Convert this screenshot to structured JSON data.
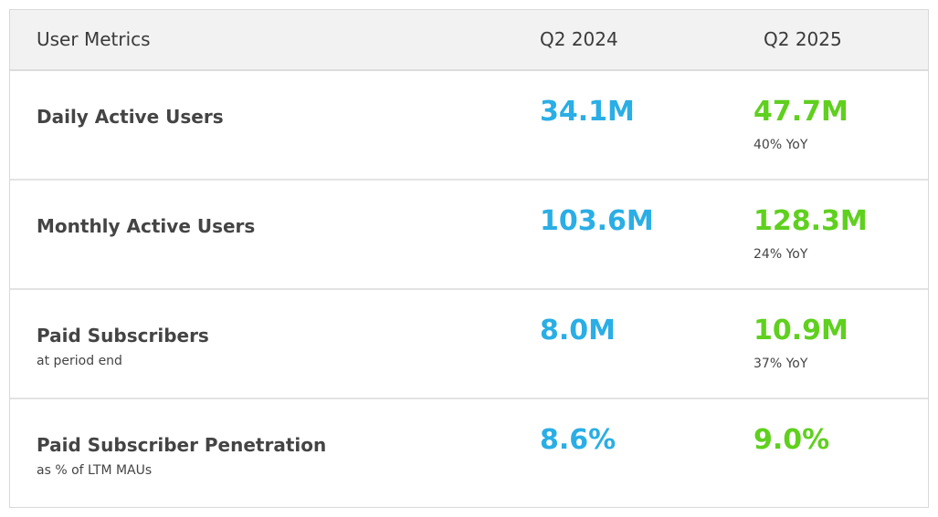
{
  "chart_data": {
    "type": "table",
    "title": "",
    "header": {
      "metric_label": "User Metrics",
      "columns": [
        "Q2 2024",
        "Q2 2025"
      ]
    },
    "rows": [
      {
        "label": "Daily Active Users",
        "sublabel": "",
        "q2_2024": "34.1M",
        "q2_2025": "47.7M",
        "yoy": "40% YoY"
      },
      {
        "label": "Monthly Active Users",
        "sublabel": "",
        "q2_2024": "103.6M",
        "q2_2025": "128.3M",
        "yoy": "24% YoY"
      },
      {
        "label": "Paid Subscribers",
        "sublabel": "at period end",
        "q2_2024": "8.0M",
        "q2_2025": "10.9M",
        "yoy": "37% YoY"
      },
      {
        "label": "Paid Subscriber Penetration",
        "sublabel": "as % of LTM MAUs",
        "q2_2024": "8.6%",
        "q2_2025": "9.0%",
        "yoy": ""
      }
    ],
    "colors": {
      "q2_2024": "#2aaee5",
      "q2_2025": "#5fd01e"
    }
  }
}
